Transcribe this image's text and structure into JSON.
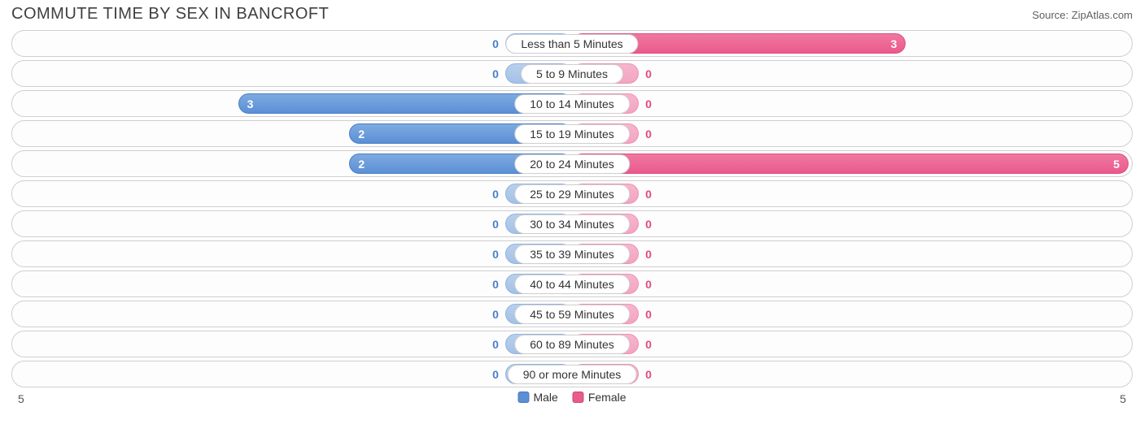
{
  "title": "COMMUTE TIME BY SEX IN BANCROFT",
  "source": "Source: ZipAtlas.com",
  "chart": {
    "type": "diverging-bar",
    "max_value": 5,
    "min_bar_pct": 12,
    "colors": {
      "male": "#5b8fd6",
      "male_faded": "#a4c1e6",
      "female": "#ea5a8d",
      "female_faded": "#f3a4c1",
      "row_border": "#cfcfcf",
      "background": "#ffffff",
      "text": "#333333"
    },
    "axis": {
      "left": "5",
      "right": "5"
    },
    "legend": [
      {
        "label": "Male",
        "swatch": "m"
      },
      {
        "label": "Female",
        "swatch": "f"
      }
    ],
    "rows": [
      {
        "label": "Less than 5 Minutes",
        "male": 0,
        "female": 3
      },
      {
        "label": "5 to 9 Minutes",
        "male": 0,
        "female": 0
      },
      {
        "label": "10 to 14 Minutes",
        "male": 3,
        "female": 0
      },
      {
        "label": "15 to 19 Minutes",
        "male": 2,
        "female": 0
      },
      {
        "label": "20 to 24 Minutes",
        "male": 2,
        "female": 5
      },
      {
        "label": "25 to 29 Minutes",
        "male": 0,
        "female": 0
      },
      {
        "label": "30 to 34 Minutes",
        "male": 0,
        "female": 0
      },
      {
        "label": "35 to 39 Minutes",
        "male": 0,
        "female": 0
      },
      {
        "label": "40 to 44 Minutes",
        "male": 0,
        "female": 0
      },
      {
        "label": "45 to 59 Minutes",
        "male": 0,
        "female": 0
      },
      {
        "label": "60 to 89 Minutes",
        "male": 0,
        "female": 0
      },
      {
        "label": "90 or more Minutes",
        "male": 0,
        "female": 0
      }
    ]
  }
}
